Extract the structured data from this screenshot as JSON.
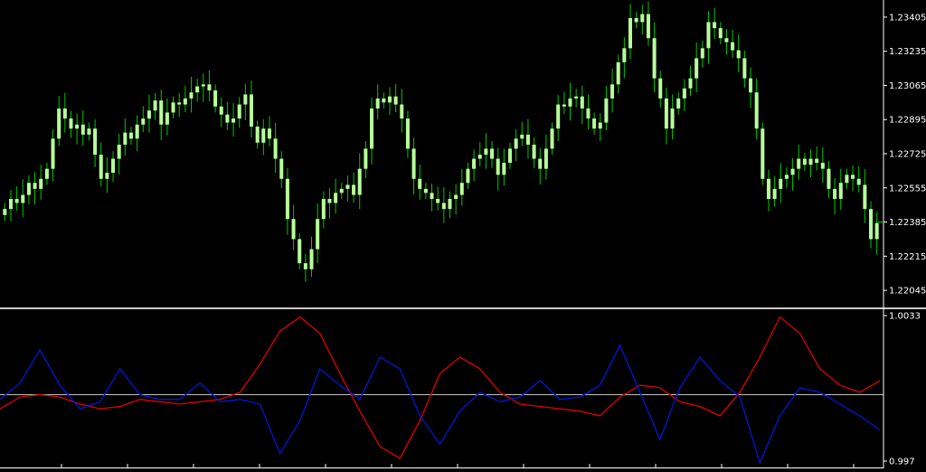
{
  "colors": {
    "background": "#000000",
    "axis": "#ffffff",
    "candle": "#b8ff9a",
    "wick": "#00c800",
    "osc_red": "#e00000",
    "osc_blue": "#0018d8",
    "zero_line": "#c0c0c0"
  },
  "chart_data": [
    {
      "type": "candlestick",
      "title": "",
      "ylim": [
        1.2196,
        1.2349
      ],
      "y_ticks": [
        "1.23405",
        "1.23235",
        "1.23065",
        "1.22895",
        "1.22725",
        "1.22555",
        "1.22385",
        "1.22215",
        "1.22045"
      ],
      "last_price": 1.22385,
      "grid": false,
      "close": [
        1.2245,
        1.225,
        1.2248,
        1.2252,
        1.2258,
        1.2255,
        1.226,
        1.2265,
        1.228,
        1.2295,
        1.229,
        1.2285,
        1.2287,
        1.2282,
        1.2285,
        1.2272,
        1.226,
        1.2263,
        1.227,
        1.2277,
        1.2283,
        1.228,
        1.2287,
        1.229,
        1.2294,
        1.2299,
        1.2287,
        1.2293,
        1.2298,
        1.2297,
        1.23,
        1.2303,
        1.2306,
        1.2307,
        1.2304,
        1.2296,
        1.2292,
        1.2288,
        1.229,
        1.2297,
        1.2302,
        1.2286,
        1.2278,
        1.2285,
        1.228,
        1.227,
        1.226,
        1.224,
        1.223,
        1.2218,
        1.2215,
        1.2225,
        1.224,
        1.225,
        1.2248,
        1.2253,
        1.2255,
        1.2257,
        1.2252,
        1.2265,
        1.2275,
        1.2295,
        1.23,
        1.2298,
        1.2301,
        1.2297,
        1.229,
        1.2275,
        1.226,
        1.2255,
        1.2253,
        1.225,
        1.2248,
        1.2245,
        1.225,
        1.2252,
        1.2258,
        1.2265,
        1.227,
        1.2272,
        1.2275,
        1.227,
        1.2262,
        1.2268,
        1.2275,
        1.228,
        1.2282,
        1.2277,
        1.227,
        1.2265,
        1.2275,
        1.2285,
        1.2297,
        1.2296,
        1.23,
        1.2301,
        1.2295,
        1.229,
        1.2285,
        1.2288,
        1.23,
        1.2307,
        1.2318,
        1.2325,
        1.234,
        1.2338,
        1.2342,
        1.233,
        1.231,
        1.23,
        1.2285,
        1.2295,
        1.23,
        1.2305,
        1.231,
        1.232,
        1.2325,
        1.2338,
        1.2335,
        1.233,
        1.2328,
        1.2324,
        1.232,
        1.231,
        1.2303,
        1.2285,
        1.226,
        1.225,
        1.2255,
        1.226,
        1.2262,
        1.2265,
        1.227,
        1.2267,
        1.227,
        1.2268,
        1.2265,
        1.2255,
        1.225,
        1.2258,
        1.2262,
        1.226,
        1.2257,
        1.2245,
        1.223,
        1.2238
      ]
    },
    {
      "type": "line",
      "title": "",
      "ylim": [
        0.997,
        1.0033
      ],
      "y_ticks": [
        "1.0033",
        "0.997"
      ],
      "zero_level": 0.9999,
      "series": [
        {
          "color": "red",
          "values": [
            0.9993,
            0.9998,
            0.9999,
            0.9998,
            0.9995,
            0.9993,
            0.9994,
            0.9997,
            0.9996,
            0.9995,
            0.9996,
            0.9997,
            1.0,
            1.0012,
            1.0026,
            1.0032,
            1.0025,
            1.0008,
            0.9992,
            0.9977,
            0.9972,
            0.9988,
            1.0008,
            1.0015,
            1.001,
            1.0,
            0.9995,
            0.9994,
            0.9993,
            0.9992,
            0.999,
            0.9998,
            1.0003,
            1.0002,
            0.9996,
            0.9994,
            0.999,
            1.0,
            1.0015,
            1.0032,
            1.0025,
            1.001,
            1.0003,
            1.0,
            1.0005
          ]
        },
        {
          "color": "blue",
          "values": [
            0.9997,
            1.0004,
            1.0018,
            1.0003,
            0.9993,
            0.9996,
            1.001,
            0.9999,
            0.9997,
            0.9997,
            1.0004,
            0.9996,
            0.9997,
            0.9995,
            0.9974,
            0.9988,
            1.001,
            1.0003,
            0.9997,
            1.0015,
            1.001,
            0.999,
            0.9978,
            0.9992,
            1.0,
            0.9996,
            0.9998,
            1.0005,
            0.9997,
            0.9998,
            1.0003,
            1.002,
            1.0,
            0.998,
            1.0002,
            1.0015,
            1.0005,
            0.9998,
            0.997,
            0.999,
            1.0002,
            1.0,
            0.9995,
            0.999,
            0.9984
          ]
        }
      ]
    }
  ]
}
